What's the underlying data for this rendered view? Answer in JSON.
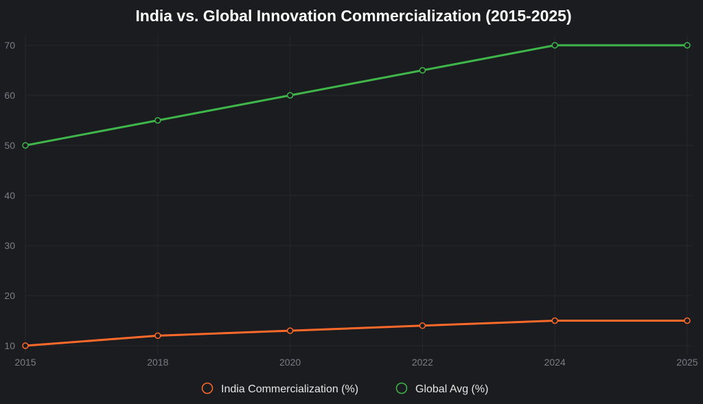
{
  "chart_data": {
    "type": "line",
    "title": "India vs. Global Innovation Commercialization (2015-2025)",
    "xlabel": "",
    "ylabel": "",
    "categories": [
      "2015",
      "2018",
      "2020",
      "2022",
      "2024",
      "2025"
    ],
    "y_ticks": [
      10,
      20,
      30,
      40,
      50,
      60,
      70
    ],
    "ylim": [
      9,
      71
    ],
    "grid": true,
    "legend_position": "bottom",
    "series": [
      {
        "name": "India Commercialization (%)",
        "color": "#ff6a2b",
        "values": [
          10,
          12,
          13,
          14,
          15,
          15
        ]
      },
      {
        "name": "Global Avg (%)",
        "color": "#3fb64a",
        "values": [
          50,
          55,
          60,
          65,
          70,
          70
        ]
      }
    ]
  }
}
